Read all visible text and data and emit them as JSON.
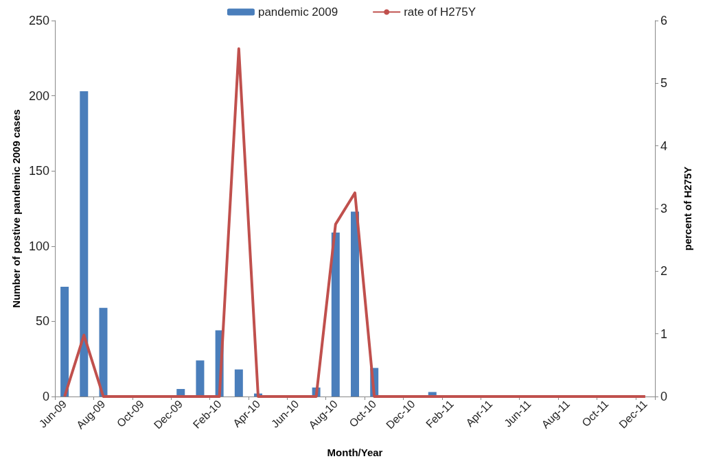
{
  "chart_data": {
    "type": "bar",
    "xlabel": "Month/Year",
    "ylabel": "Number of postive pandemic 2009 cases",
    "y2label": "percent of H275Y",
    "categories": [
      "Jun-09",
      null,
      "Aug-09",
      null,
      "Oct-09",
      null,
      "Dec-09",
      null,
      "Feb-10",
      null,
      "Apr-10",
      null,
      "Jun-10",
      null,
      "Aug-10",
      null,
      "Oct-10",
      null,
      "Dec-10",
      null,
      "Feb-11",
      null,
      "Apr-11",
      null,
      "Jun-11",
      null,
      "Aug-11",
      null,
      "Oct-11",
      null,
      "Dec-11"
    ],
    "series": [
      {
        "name": "pandemic 2009",
        "color": "#4a7ebb",
        "values": [
          73,
          203,
          59,
          0,
          0,
          0,
          5,
          24,
          44,
          18,
          2,
          0,
          0,
          6,
          109,
          123,
          19,
          0,
          0,
          3,
          0,
          0,
          0,
          0,
          0,
          0,
          0,
          0,
          0,
          0,
          0
        ]
      },
      {
        "name": "rate of H275Y",
        "type": "line",
        "axis": "y2",
        "color": "#c0504d",
        "values": [
          0,
          0.98,
          0,
          0,
          0,
          0,
          0,
          0,
          0,
          5.55,
          0,
          0,
          0,
          0,
          2.75,
          3.25,
          0,
          0,
          0,
          0,
          0,
          0,
          0,
          0,
          0,
          0,
          0,
          0,
          0,
          0,
          0
        ]
      }
    ],
    "ylim": [
      0,
      250
    ],
    "yticks": [
      0,
      50,
      100,
      150,
      200,
      250
    ],
    "y2lim": [
      0,
      6
    ],
    "y2ticks": [
      0,
      1,
      2,
      3,
      4,
      5,
      6
    ],
    "legend": "top",
    "grid": false,
    "marker": "none",
    "line_style": "solid"
  }
}
